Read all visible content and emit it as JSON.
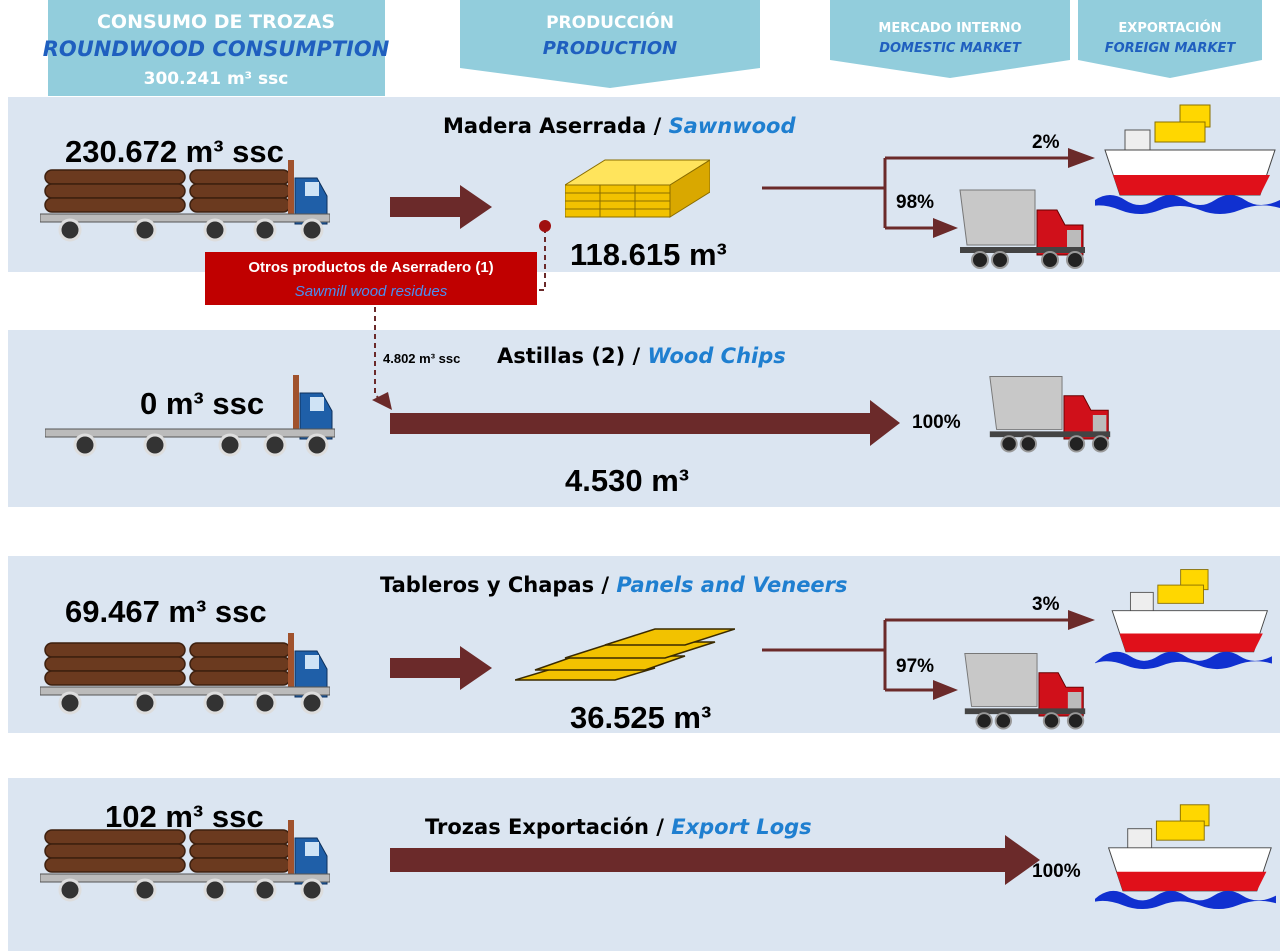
{
  "header": {
    "consumption": {
      "title": "CONSUMO DE TROZAS",
      "subtitle": "ROUNDWOOD CONSUMPTION",
      "total": "300.241 m³ ssc"
    },
    "production": {
      "title": "PRODUCCIÓN",
      "subtitle": "PRODUCTION"
    },
    "domestic": {
      "title": "MERCADO INTERNO",
      "subtitle": "DOMESTIC MARKET"
    },
    "foreign": {
      "title": "EXPORTACIÓN",
      "subtitle": "FOREIGN MARKET"
    }
  },
  "rows": [
    {
      "consumption": "230.672 m³ ssc",
      "product": "Madera Aserrada /",
      "product_en": "Sawnwood",
      "volume": "118.615 m³",
      "export": "2%",
      "domestic": "98%"
    },
    {
      "consumption": "0 m³ ssc",
      "input": "4.802 m³ ssc",
      "product": "Astillas (2) /",
      "product_en": "Wood Chips",
      "volume": "4.530 m³",
      "domestic": "100%"
    },
    {
      "consumption": "69.467 m³ ssc",
      "product": "Tableros y Chapas /",
      "product_en": "Panels and Veneers",
      "volume": "36.525 m³",
      "export": "3%",
      "domestic": "97%"
    },
    {
      "consumption": "102 m³ ssc",
      "product": "Trozas Exportación /",
      "product_en": "Export Logs",
      "export": "100%"
    }
  ],
  "residues": {
    "label": "Otros productos de Aserradero (1)",
    "label_en": "Sawmill  wood residues"
  }
}
